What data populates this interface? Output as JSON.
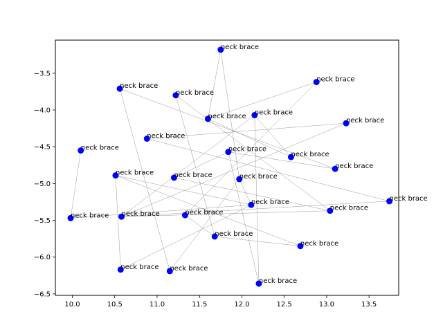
{
  "chart_data": {
    "type": "scatter",
    "title": "",
    "xlabel": "",
    "ylabel": "",
    "xlim": [
      9.8,
      13.85
    ],
    "ylim": [
      -6.52,
      -3.05
    ],
    "xticks": [
      10.0,
      10.5,
      11.0,
      11.5,
      12.0,
      12.5,
      13.0,
      13.5
    ],
    "yticks": [
      -6.5,
      -6.0,
      -5.5,
      -5.0,
      -4.5,
      -4.0,
      -3.5
    ],
    "xtick_labels": [
      "10.0",
      "10.5",
      "11.0",
      "11.5",
      "12.0",
      "12.5",
      "13.0",
      "13.5"
    ],
    "ytick_labels": [
      "−6.5",
      "−6.0",
      "−5.5",
      "−5.0",
      "−4.5",
      "−4.0",
      "−3.5"
    ],
    "grid": false,
    "point_color": "#0000ff",
    "edge_color": "#808080",
    "points": [
      {
        "x": 11.75,
        "y": -3.18,
        "label": "neck brace"
      },
      {
        "x": 12.88,
        "y": -3.62,
        "label": "neck brace"
      },
      {
        "x": 10.56,
        "y": -3.71,
        "label": "neck brace"
      },
      {
        "x": 11.22,
        "y": -3.8,
        "label": "neck brace"
      },
      {
        "x": 12.15,
        "y": -4.07,
        "label": "neck brace"
      },
      {
        "x": 11.6,
        "y": -4.12,
        "label": "neck brace"
      },
      {
        "x": 13.23,
        "y": -4.18,
        "label": "neck brace"
      },
      {
        "x": 10.88,
        "y": -4.39,
        "label": "neck brace"
      },
      {
        "x": 10.1,
        "y": -4.55,
        "label": "neck brace"
      },
      {
        "x": 11.84,
        "y": -4.57,
        "label": "neck brace"
      },
      {
        "x": 12.58,
        "y": -4.64,
        "label": "neck brace"
      },
      {
        "x": 13.1,
        "y": -4.8,
        "label": "neck brace"
      },
      {
        "x": 10.51,
        "y": -4.89,
        "label": "neck brace"
      },
      {
        "x": 11.2,
        "y": -4.92,
        "label": "neck brace"
      },
      {
        "x": 11.97,
        "y": -4.94,
        "label": "neck brace"
      },
      {
        "x": 13.74,
        "y": -5.24,
        "label": "neck brace"
      },
      {
        "x": 12.11,
        "y": -5.29,
        "label": "neck brace"
      },
      {
        "x": 13.04,
        "y": -5.37,
        "label": "neck brace"
      },
      {
        "x": 9.98,
        "y": -5.47,
        "label": "neck brace"
      },
      {
        "x": 10.58,
        "y": -5.45,
        "label": "neck brace"
      },
      {
        "x": 11.33,
        "y": -5.43,
        "label": "neck brace"
      },
      {
        "x": 11.68,
        "y": -5.72,
        "label": "neck brace"
      },
      {
        "x": 12.69,
        "y": -5.85,
        "label": "neck brace"
      },
      {
        "x": 10.57,
        "y": -6.17,
        "label": "neck brace"
      },
      {
        "x": 11.15,
        "y": -6.19,
        "label": "neck brace"
      },
      {
        "x": 12.2,
        "y": -6.36,
        "label": "neck brace"
      }
    ],
    "edges": [
      [
        0,
        5
      ],
      [
        0,
        14
      ],
      [
        1,
        5
      ],
      [
        1,
        20
      ],
      [
        2,
        11
      ],
      [
        2,
        24
      ],
      [
        3,
        21
      ],
      [
        3,
        17
      ],
      [
        4,
        10
      ],
      [
        4,
        25
      ],
      [
        4,
        19
      ],
      [
        5,
        10
      ],
      [
        6,
        7
      ],
      [
        6,
        19
      ],
      [
        7,
        15
      ],
      [
        8,
        18
      ],
      [
        9,
        13
      ],
      [
        9,
        11
      ],
      [
        9,
        25
      ],
      [
        12,
        22
      ],
      [
        12,
        16
      ],
      [
        12,
        23
      ],
      [
        13,
        17
      ],
      [
        14,
        24
      ],
      [
        14,
        16
      ],
      [
        15,
        19
      ],
      [
        16,
        18
      ],
      [
        20,
        21
      ],
      [
        21,
        22
      ],
      [
        19,
        17
      ],
      [
        23,
        16
      ]
    ]
  }
}
